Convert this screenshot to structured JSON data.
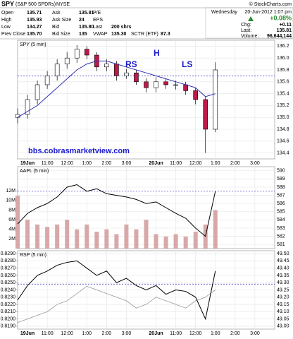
{
  "header": {
    "symbol": "SPY",
    "name": "(S&P 500 SPDRs)",
    "exchange": "NYSE",
    "credit": "© StockCharts.com",
    "quotes": [
      [
        "Open",
        "135.71",
        "Ask",
        "135.81",
        "P/E"
      ],
      [
        "High",
        "135.93",
        "Ask Size",
        "24",
        "EPS"
      ],
      [
        "Low",
        "134.27",
        "Bid",
        "135.80",
        "Last",
        "200 shrs"
      ],
      [
        "Prev Close",
        "135.70",
        "Bid Size",
        "135",
        "VWAP",
        "135.30",
        "SCTR (ETF)",
        "87.3"
      ]
    ],
    "weekday": "Wednesday",
    "datetime": "20-Jun-2012 1:07 pm",
    "pct": "+0.08%",
    "stats": [
      [
        "Chg:",
        "+0.11"
      ],
      [
        "Last:",
        "135.81"
      ],
      [
        "Volume:",
        "96,644,144"
      ]
    ]
  },
  "annotations": [
    "RS",
    "H",
    "LS",
    "bbs.cobrasmarketview.com"
  ],
  "chart_data": [
    {
      "type": "candlestick",
      "label": "SPY (5 min)",
      "x": [
        0,
        6,
        12,
        18,
        24,
        30,
        36,
        42,
        48,
        54,
        60,
        66,
        72,
        78,
        84,
        90,
        96,
        102,
        108,
        114,
        120
      ],
      "open": [
        135.0,
        135.05,
        135.3,
        135.55,
        135.7,
        135.9,
        136.0,
        136.15,
        136.05,
        135.85,
        135.9,
        135.7,
        135.75,
        135.6,
        135.5,
        135.6,
        135.55,
        135.55,
        135.45,
        135.3,
        134.8
      ],
      "high": [
        135.15,
        135.38,
        135.62,
        135.78,
        135.98,
        136.1,
        136.22,
        136.2,
        136.1,
        135.98,
        135.95,
        135.82,
        135.8,
        135.66,
        135.68,
        135.65,
        135.62,
        135.6,
        135.5,
        135.35,
        135.93
      ],
      "low": [
        134.9,
        134.98,
        135.22,
        135.48,
        135.62,
        135.82,
        135.92,
        135.98,
        135.78,
        135.78,
        135.62,
        135.65,
        135.55,
        135.42,
        135.42,
        135.48,
        135.47,
        135.38,
        135.22,
        134.4,
        134.75
      ],
      "close": [
        135.05,
        135.3,
        135.55,
        135.7,
        135.9,
        136.0,
        136.15,
        136.05,
        135.85,
        135.9,
        135.7,
        135.75,
        135.6,
        135.5,
        135.6,
        135.55,
        135.55,
        135.45,
        135.3,
        134.8,
        135.8
      ],
      "ma": [
        135.0,
        135.1,
        135.2,
        135.35,
        135.5,
        135.65,
        135.8,
        135.9,
        135.95,
        135.95,
        135.9,
        135.85,
        135.8,
        135.75,
        135.7,
        135.65,
        135.6,
        135.55,
        135.5,
        135.35,
        135.4
      ],
      "up_color": "#ffffff",
      "down_color": "#c0184a",
      "ma_color": "#3030b0",
      "hline": 135.7,
      "hline_color": "#3030c0",
      "xlim": [
        0,
        156
      ],
      "xticks": [
        {
          "value": 6,
          "label": "19Jun"
        },
        {
          "value": 18,
          "label": "11:00"
        },
        {
          "value": 30,
          "label": "12:00"
        },
        {
          "value": 42,
          "label": "1:00"
        },
        {
          "value": 54,
          "label": "2:00"
        },
        {
          "value": 66,
          "label": "3:00"
        },
        {
          "value": 84,
          "label": "20Jun"
        },
        {
          "value": 96,
          "label": "11:00"
        },
        {
          "value": 108,
          "label": "12:00"
        },
        {
          "value": 120,
          "label": "1:00"
        },
        {
          "value": 132,
          "label": "2:00"
        },
        {
          "value": 144,
          "label": "3:00"
        }
      ],
      "ylim": [
        134.3,
        136.3
      ],
      "yticks": [
        134.4,
        134.6,
        134.8,
        {
          "value": 135,
          "label": "135.0"
        },
        135.2,
        135.4,
        135.6,
        135.8,
        {
          "value": 136,
          "label": "136.0"
        },
        136.2
      ],
      "grid": true
    },
    {
      "type": "line_volume",
      "label": "AAPL (5 min)",
      "x": [
        0,
        6,
        12,
        18,
        24,
        30,
        36,
        42,
        48,
        54,
        60,
        66,
        72,
        78,
        84,
        90,
        96,
        102,
        108,
        114,
        120
      ],
      "close": [
        583.5,
        584.8,
        585.5,
        586,
        586.8,
        588,
        588.3,
        587.5,
        587.8,
        587.2,
        587,
        586.8,
        586.5,
        586,
        586.2,
        585.5,
        584.8,
        584.2,
        583,
        582,
        587.5
      ],
      "volume": [
        11000000,
        6000000,
        5000000,
        4500000,
        5000000,
        6000000,
        4000000,
        5000000,
        3500000,
        4000000,
        3000000,
        5000000,
        4000000,
        6000000,
        3000000,
        2500000,
        3000000,
        2500000,
        3500000,
        5000000,
        8000000
      ],
      "color": "#000000",
      "volume_color": "#d8a8a8",
      "hline": 587.5,
      "hline_color": "#3030c0",
      "xlim": [
        0,
        156
      ],
      "ylim": [
        580.5,
        590.5
      ],
      "yticks": [
        581,
        582,
        583,
        584,
        585,
        586,
        587,
        588,
        589,
        590
      ],
      "y2lim": [
        0,
        17000000
      ],
      "y2ticks": [
        {
          "value": 2000000,
          "label": "2M"
        },
        {
          "value": 4000000,
          "label": "4M"
        },
        {
          "value": 6000000,
          "label": "6M"
        },
        {
          "value": 8000000,
          "label": "8M"
        },
        {
          "value": 10000000,
          "label": "10M"
        },
        {
          "value": 12000000,
          "label": "12M"
        }
      ],
      "grid": true
    },
    {
      "type": "line",
      "label": "RSP (5 min)",
      "x": [
        0,
        6,
        12,
        18,
        24,
        30,
        36,
        42,
        48,
        54,
        60,
        66,
        72,
        78,
        84,
        90,
        96,
        102,
        108,
        114,
        120
      ],
      "close": [
        49.18,
        49.28,
        49.35,
        49.38,
        49.42,
        49.44,
        49.45,
        49.4,
        49.35,
        49.38,
        49.3,
        49.33,
        49.28,
        49.25,
        49.28,
        49.22,
        49.25,
        49.24,
        49.2,
        49.05,
        49.38
      ],
      "ratio": [
        0.8195,
        0.82,
        0.8205,
        0.821,
        0.822,
        0.8225,
        0.8235,
        0.8245,
        0.824,
        0.8235,
        0.823,
        0.8225,
        0.8215,
        0.822,
        0.823,
        0.8225,
        0.822,
        0.8215,
        0.8225,
        0.823,
        0.824
      ],
      "color": "#000000",
      "ratio_color": "#999999",
      "hline": 49.29,
      "hline_color": "#3030c0",
      "xlim": [
        0,
        156
      ],
      "xticks": [
        {
          "value": 6,
          "label": "19Jun"
        },
        {
          "value": 18,
          "label": "11:00"
        },
        {
          "value": 30,
          "label": "12:00"
        },
        {
          "value": 42,
          "label": "1:00"
        },
        {
          "value": 54,
          "label": "2:00"
        },
        {
          "value": 66,
          "label": "3:00"
        },
        {
          "value": 84,
          "label": "20Jun"
        },
        {
          "value": 96,
          "label": "11:00"
        },
        {
          "value": 108,
          "label": "12:00"
        },
        {
          "value": 120,
          "label": "1:00"
        },
        {
          "value": 132,
          "label": "2:00"
        },
        {
          "value": 144,
          "label": "3:00"
        }
      ],
      "ylim": [
        48.98,
        49.52
      ],
      "yticks": [
        {
          "value": 49,
          "label": "49.00"
        },
        49.05,
        {
          "value": 49.1,
          "label": "49.10"
        },
        49.15,
        {
          "value": 49.2,
          "label": "49.20"
        },
        49.25,
        {
          "value": 49.3,
          "label": "49.30"
        },
        49.35,
        {
          "value": 49.4,
          "label": "49.40"
        },
        49.45,
        {
          "value": 49.5,
          "label": "49.50"
        }
      ],
      "y2lim": [
        0.8186,
        0.8294
      ],
      "y2ticks": [
        {
          "value": 0.819,
          "label": "0.8190"
        },
        {
          "value": 0.82,
          "label": "0.8200"
        },
        {
          "value": 0.821,
          "label": "0.8210"
        },
        {
          "value": 0.822,
          "label": "0.8220"
        },
        {
          "value": 0.823,
          "label": "0.8230"
        },
        {
          "value": 0.824,
          "label": "0.8240"
        },
        {
          "value": 0.825,
          "label": "0.8250"
        },
        {
          "value": 0.826,
          "label": "0.8260"
        },
        {
          "value": 0.827,
          "label": "0.8270"
        },
        {
          "value": 0.828,
          "label": "0.8280"
        },
        {
          "value": 0.829,
          "label": "0.8290"
        }
      ],
      "grid": true
    }
  ]
}
